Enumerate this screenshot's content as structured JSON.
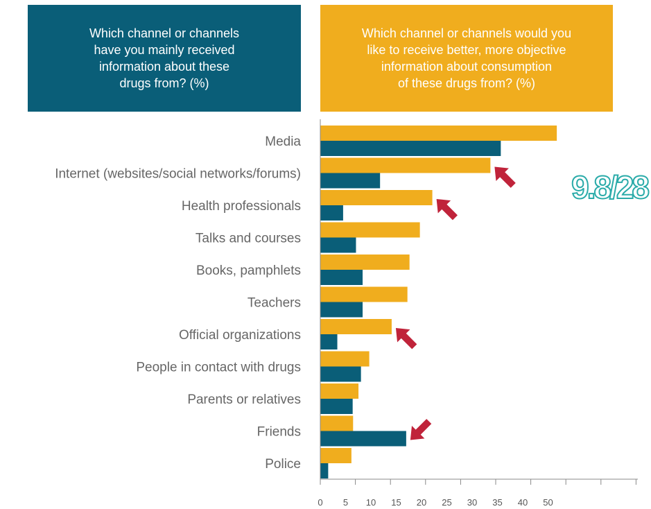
{
  "header_left": "Which channel or channels\nhave you mainly received\ninformation about these\ndrugs from? (%)",
  "header_right": "Which channel or channels would you\nlike to receive better, more objective\ninformation about consumption\nof these drugs from? (%)",
  "callout": "9.8/28",
  "colors": {
    "received": "#0a5e78",
    "desired": "#f0ad1e",
    "arrow": "#c0233a",
    "callout": "#2aaba9"
  },
  "chart_data": {
    "type": "bar",
    "orientation": "horizontal",
    "categories": [
      "Media",
      "Internet (websites/social networks/forums)",
      "Health professionals",
      "Talks and courses",
      "Books, pamphlets",
      "Teachers",
      "Official organizations",
      "People in contact with drugs",
      "Parents or relatives",
      "Friends",
      "Police"
    ],
    "series": [
      {
        "key": "desired",
        "values": [
          57,
          41,
          27,
          24,
          21.5,
          21,
          17.2,
          11.8,
          9.2,
          7.9,
          7.5
        ]
      },
      {
        "key": "received",
        "values": [
          43.5,
          14.4,
          5.5,
          8.6,
          10.2,
          10.2,
          4.1,
          9.8,
          7.8,
          20.7,
          1.9
        ]
      }
    ],
    "ticks": [
      0,
      5,
      10,
      15,
      20,
      25,
      30,
      35,
      40,
      50
    ],
    "xlim": [
      0,
      66
    ],
    "annotations": [
      {
        "type": "arrow",
        "category": "Internet (websites/social networks/forums)",
        "series": "desired"
      },
      {
        "type": "arrow",
        "category": "Health professionals",
        "series": "desired"
      },
      {
        "type": "arrow",
        "category": "Official organizations",
        "series": "desired"
      },
      {
        "type": "arrow",
        "category": "Friends",
        "series": "received"
      }
    ]
  }
}
